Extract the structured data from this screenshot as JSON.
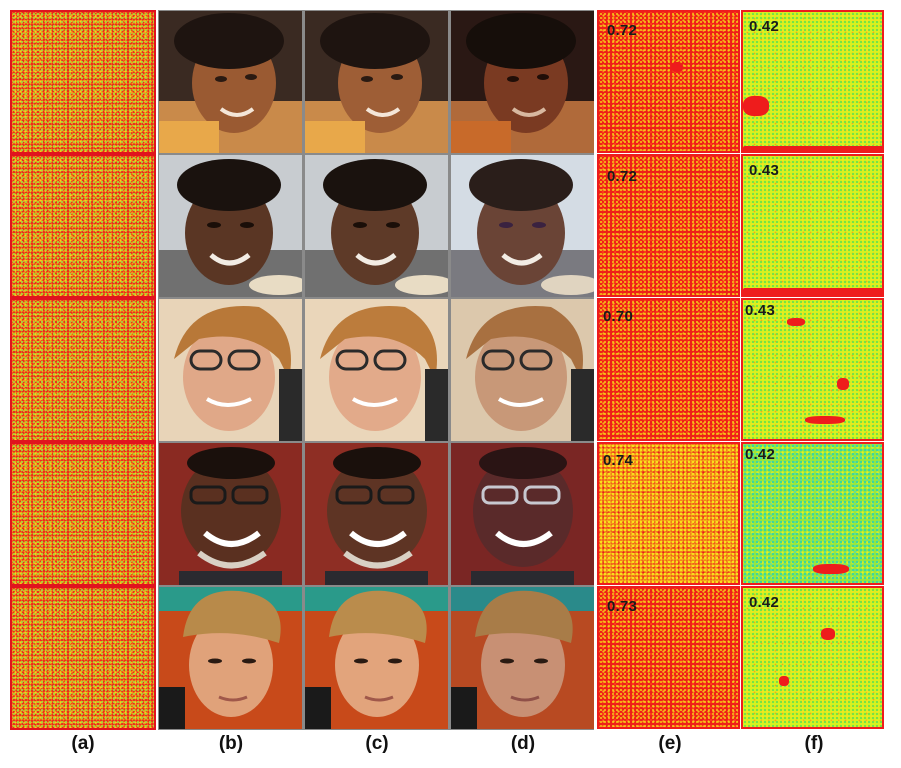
{
  "columns": [
    {
      "label": "(a)"
    },
    {
      "label": "(b)"
    },
    {
      "label": "(c)"
    },
    {
      "label": "(d)"
    },
    {
      "label": "(e)"
    },
    {
      "label": "(f)"
    }
  ],
  "rows": [
    {
      "score_e": "0.72",
      "score_f": "0.42"
    },
    {
      "score_e": "0.72",
      "score_f": "0.43"
    },
    {
      "score_e": "0.70",
      "score_f": "0.43"
    },
    {
      "score_e": "0.74",
      "score_f": "0.42"
    },
    {
      "score_e": "0.73",
      "score_f": "0.42"
    }
  ],
  "colors": {
    "heat_red": "#ee1c1c",
    "heat_yellow": "#f8e41c",
    "heat_green": "#6ee24a",
    "heat_cyan": "#38d8a0"
  }
}
